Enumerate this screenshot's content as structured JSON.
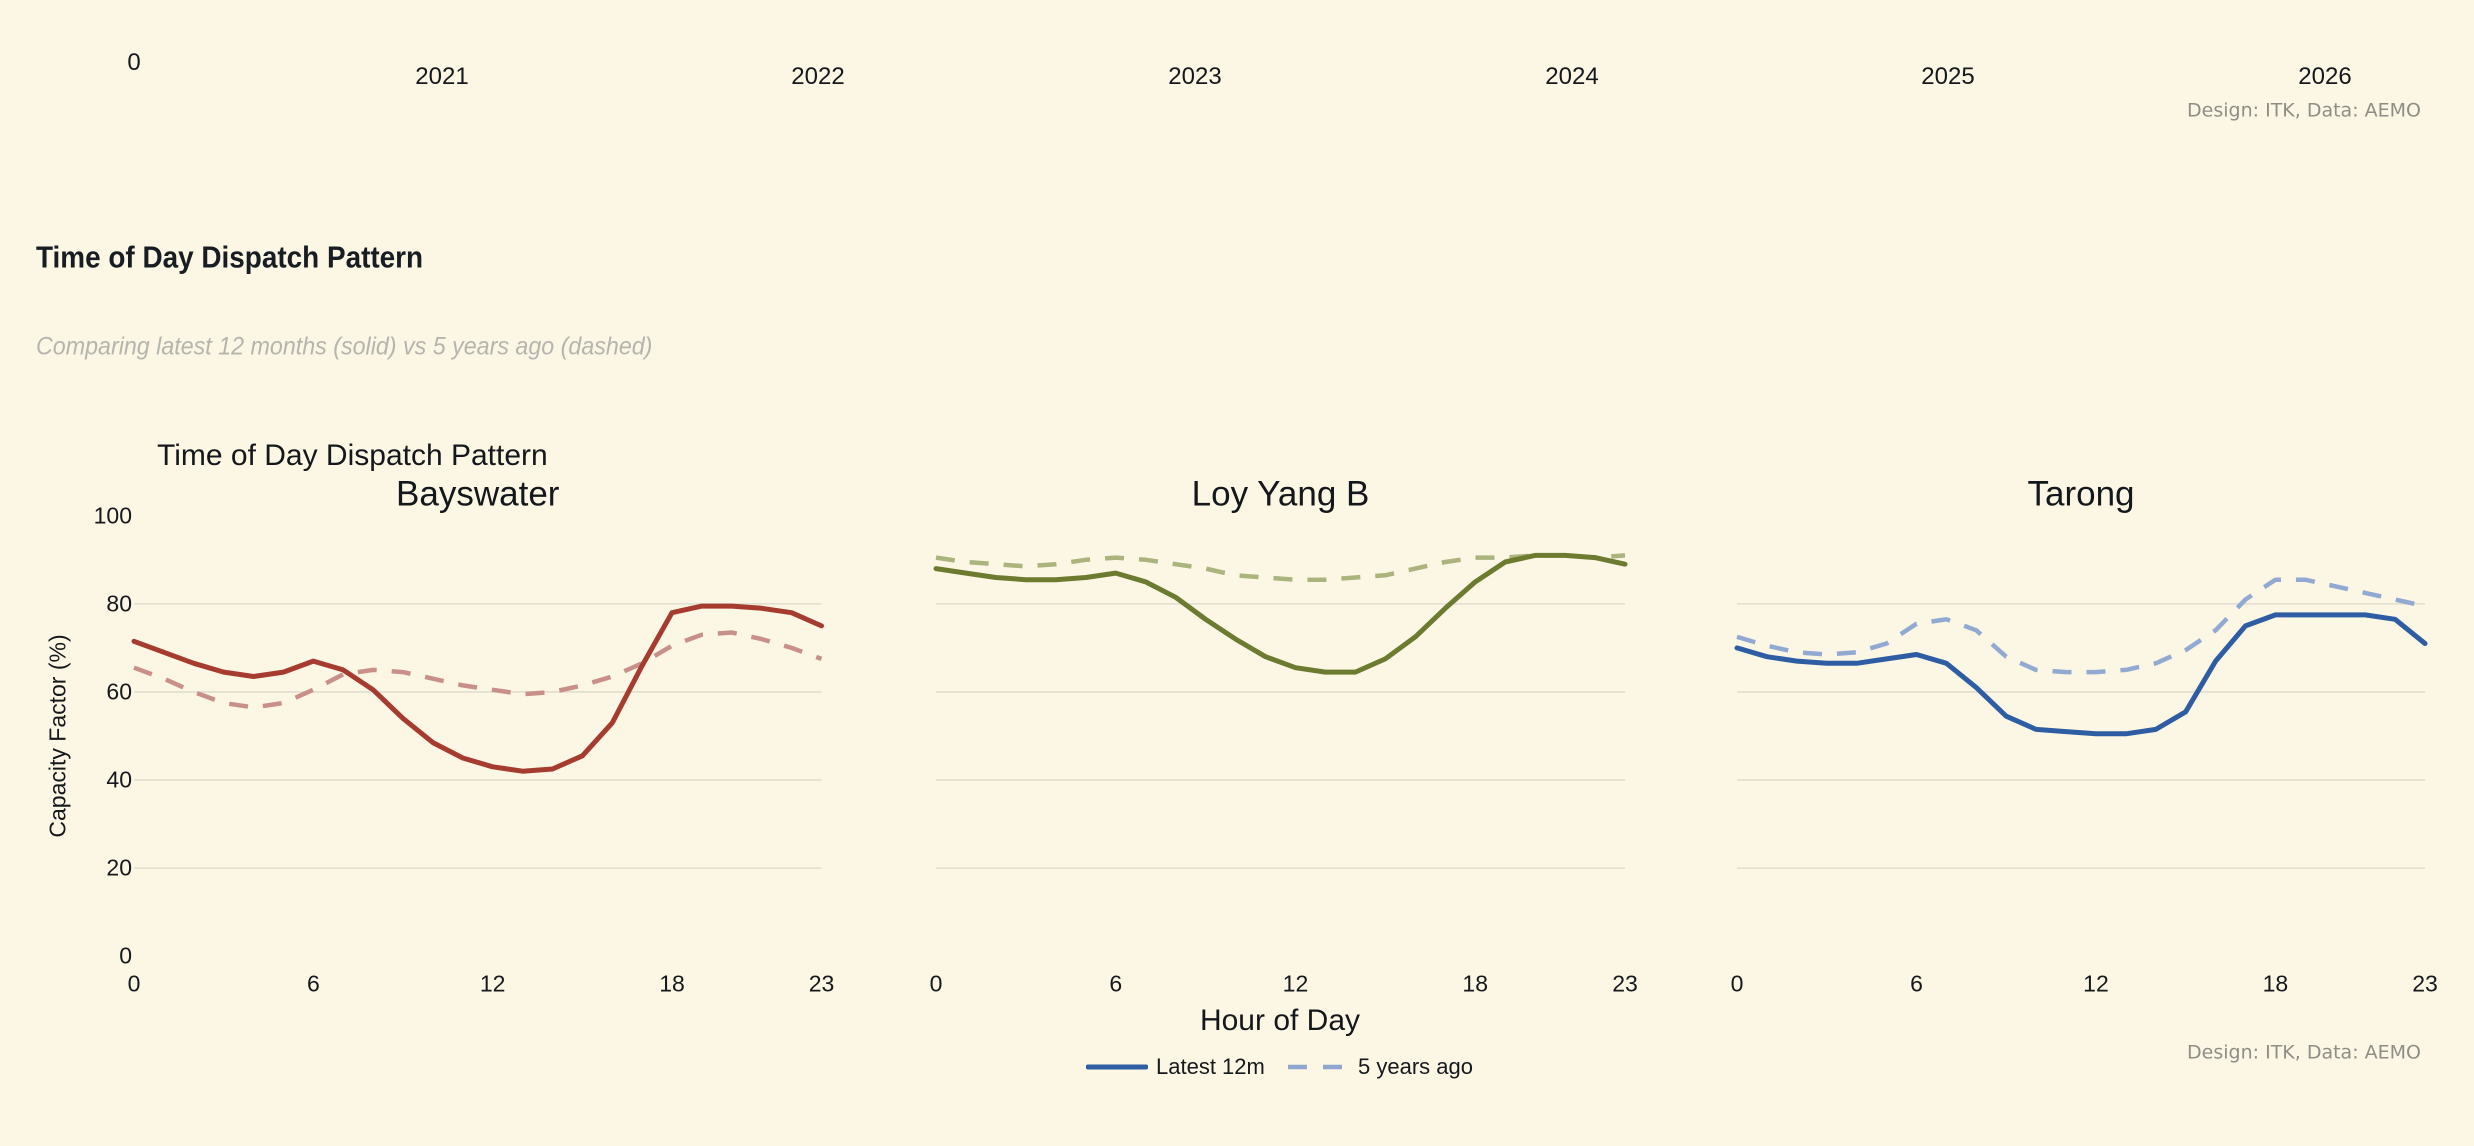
{
  "top_axis": {
    "zero_label": "0",
    "year_labels": [
      "2021",
      "2022",
      "2023",
      "2024",
      "2025",
      "2026"
    ]
  },
  "credits": {
    "top": "Design: ITK, Data: AEMO",
    "bottom": "Design: ITK, Data: AEMO"
  },
  "header": {
    "title": "Time of Day Dispatch Pattern",
    "subtitle": "Comparing latest 12 months (solid) vs 5 years ago (dashed)"
  },
  "figure": {
    "suptitle": "Time of Day Dispatch Pattern",
    "y_axis_label": "Capacity Factor (%)",
    "x_axis_label": "Hour of Day",
    "legend": [
      {
        "label": "Latest 12m",
        "style": "solid",
        "color": "#2E5DA4"
      },
      {
        "label": "5 years ago",
        "style": "dashed",
        "color": "#8FA6CE"
      }
    ]
  },
  "axes": {
    "hours": [
      0,
      1,
      2,
      3,
      4,
      5,
      6,
      7,
      8,
      9,
      10,
      11,
      12,
      13,
      14,
      15,
      16,
      17,
      18,
      19,
      20,
      21,
      22,
      23
    ],
    "x_ticks": [
      0,
      6,
      12,
      18,
      23
    ],
    "y_ticks": [
      0,
      20,
      40,
      60,
      80,
      100
    ],
    "grid_values": [
      20,
      40,
      60,
      80
    ],
    "xlim": [
      0,
      23
    ],
    "ylim": [
      0,
      100
    ],
    "grid": true,
    "legend_position": "bottom-center"
  },
  "chart_data": [
    {
      "type": "line",
      "title": "Bayswater",
      "xlabel": "Hour of Day",
      "ylabel": "Capacity Factor (%)",
      "ylim": [
        0,
        100
      ],
      "series": [
        {
          "name": "Latest 12m",
          "style": "solid",
          "color": "#A53C2F",
          "values": [
            71.5,
            69,
            66.5,
            64.5,
            63.5,
            64.5,
            67,
            65,
            60.5,
            54,
            48.5,
            45,
            43,
            42,
            42.5,
            45.5,
            53,
            66,
            78,
            79.5,
            79.5,
            79,
            78,
            75
          ]
        },
        {
          "name": "5 years ago",
          "style": "dashed",
          "color": "#C9908A",
          "values": [
            65.5,
            63,
            60,
            57.5,
            56.5,
            57.5,
            60.5,
            64,
            65,
            64.5,
            63,
            61.5,
            60.5,
            59.5,
            60,
            61.5,
            63.5,
            66.5,
            70.5,
            73,
            73.5,
            72,
            70,
            67.5
          ]
        }
      ]
    },
    {
      "type": "line",
      "title": "Loy Yang B",
      "xlabel": "Hour of Day",
      "ylabel": "Capacity Factor (%)",
      "ylim": [
        0,
        100
      ],
      "series": [
        {
          "name": "Latest 12m",
          "style": "solid",
          "color": "#6C7B2F",
          "values": [
            88,
            87,
            86,
            85.5,
            85.5,
            86,
            87,
            85,
            81.5,
            76.5,
            72,
            68,
            65.5,
            64.5,
            64.5,
            67.5,
            72.5,
            79,
            85,
            89.5,
            91,
            91,
            90.5,
            89
          ]
        },
        {
          "name": "5 years ago",
          "style": "dashed",
          "color": "#ABB47C",
          "values": [
            90.5,
            89.5,
            89,
            88.5,
            89,
            90,
            90.5,
            90,
            89,
            88,
            86.5,
            86,
            85.5,
            85.5,
            86,
            86.5,
            88,
            89.5,
            90.5,
            90.5,
            91,
            91,
            90.5,
            91
          ]
        }
      ]
    },
    {
      "type": "line",
      "title": "Tarong",
      "xlabel": "Hour of Day",
      "ylabel": "Capacity Factor (%)",
      "ylim": [
        0,
        100
      ],
      "series": [
        {
          "name": "Latest 12m",
          "style": "solid",
          "color": "#2E5DA4",
          "values": [
            70,
            68,
            67,
            66.5,
            66.5,
            67.5,
            68.5,
            66.5,
            61,
            54.5,
            51.5,
            51,
            50.5,
            50.5,
            51.5,
            55.5,
            67,
            75,
            77.5,
            77.5,
            77.5,
            77.5,
            76.5,
            71
          ]
        },
        {
          "name": "5 years ago",
          "style": "dashed",
          "color": "#92A9D2",
          "values": [
            72.5,
            70.5,
            69,
            68.5,
            69,
            71,
            75.5,
            76.5,
            74,
            68,
            65,
            64.5,
            64.5,
            65,
            66.5,
            69.5,
            74,
            81,
            85.5,
            85.5,
            84,
            82.5,
            81,
            79.5
          ]
        }
      ]
    }
  ],
  "colors": {
    "background": "#FBF7E4",
    "grid": "#E1DED0",
    "text": "#15181D",
    "subtitle": "#B5B5AE",
    "credit": "#8E8E86"
  }
}
